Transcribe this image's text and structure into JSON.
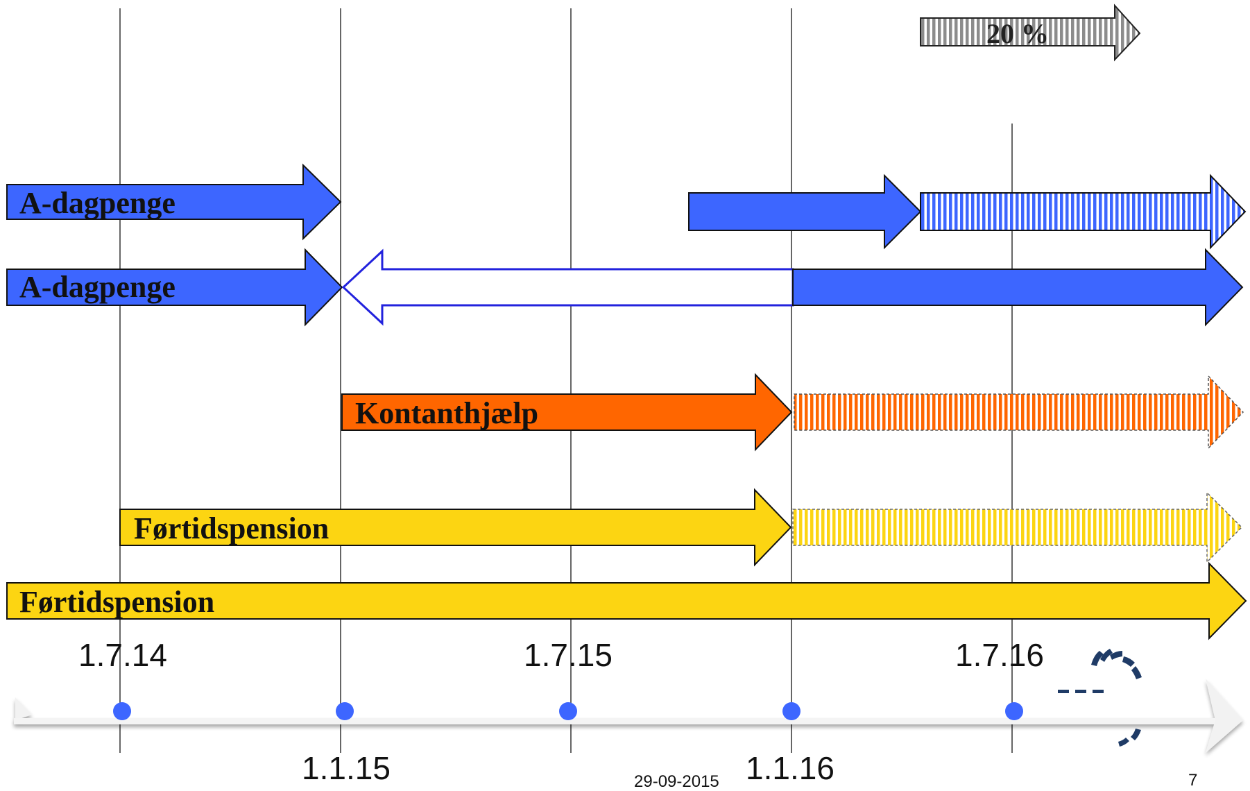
{
  "labels": {
    "a_dagpenge_top": "A-dagpenge",
    "a_dagpenge_bottom": "A-dagpenge",
    "kontanthjaelp": "Kontanthjælp",
    "fortidspension_top": "Førtidspension",
    "fortidspension_bottom": "Førtidspension",
    "percent": "20 %"
  },
  "timeline": {
    "top_dates": [
      "1.7.14",
      "1.7.15",
      "1.7.16"
    ],
    "bottom_dates": [
      "1.1.15",
      "1.1.16"
    ]
  },
  "footer": {
    "date": "29-09-2015",
    "page": "7"
  },
  "colors": {
    "blue": "#3d66ff",
    "orange": "#ff6600",
    "yellow": "#fcd512",
    "gray": "#9a9a9a",
    "outline_blue": "#2222dd"
  }
}
